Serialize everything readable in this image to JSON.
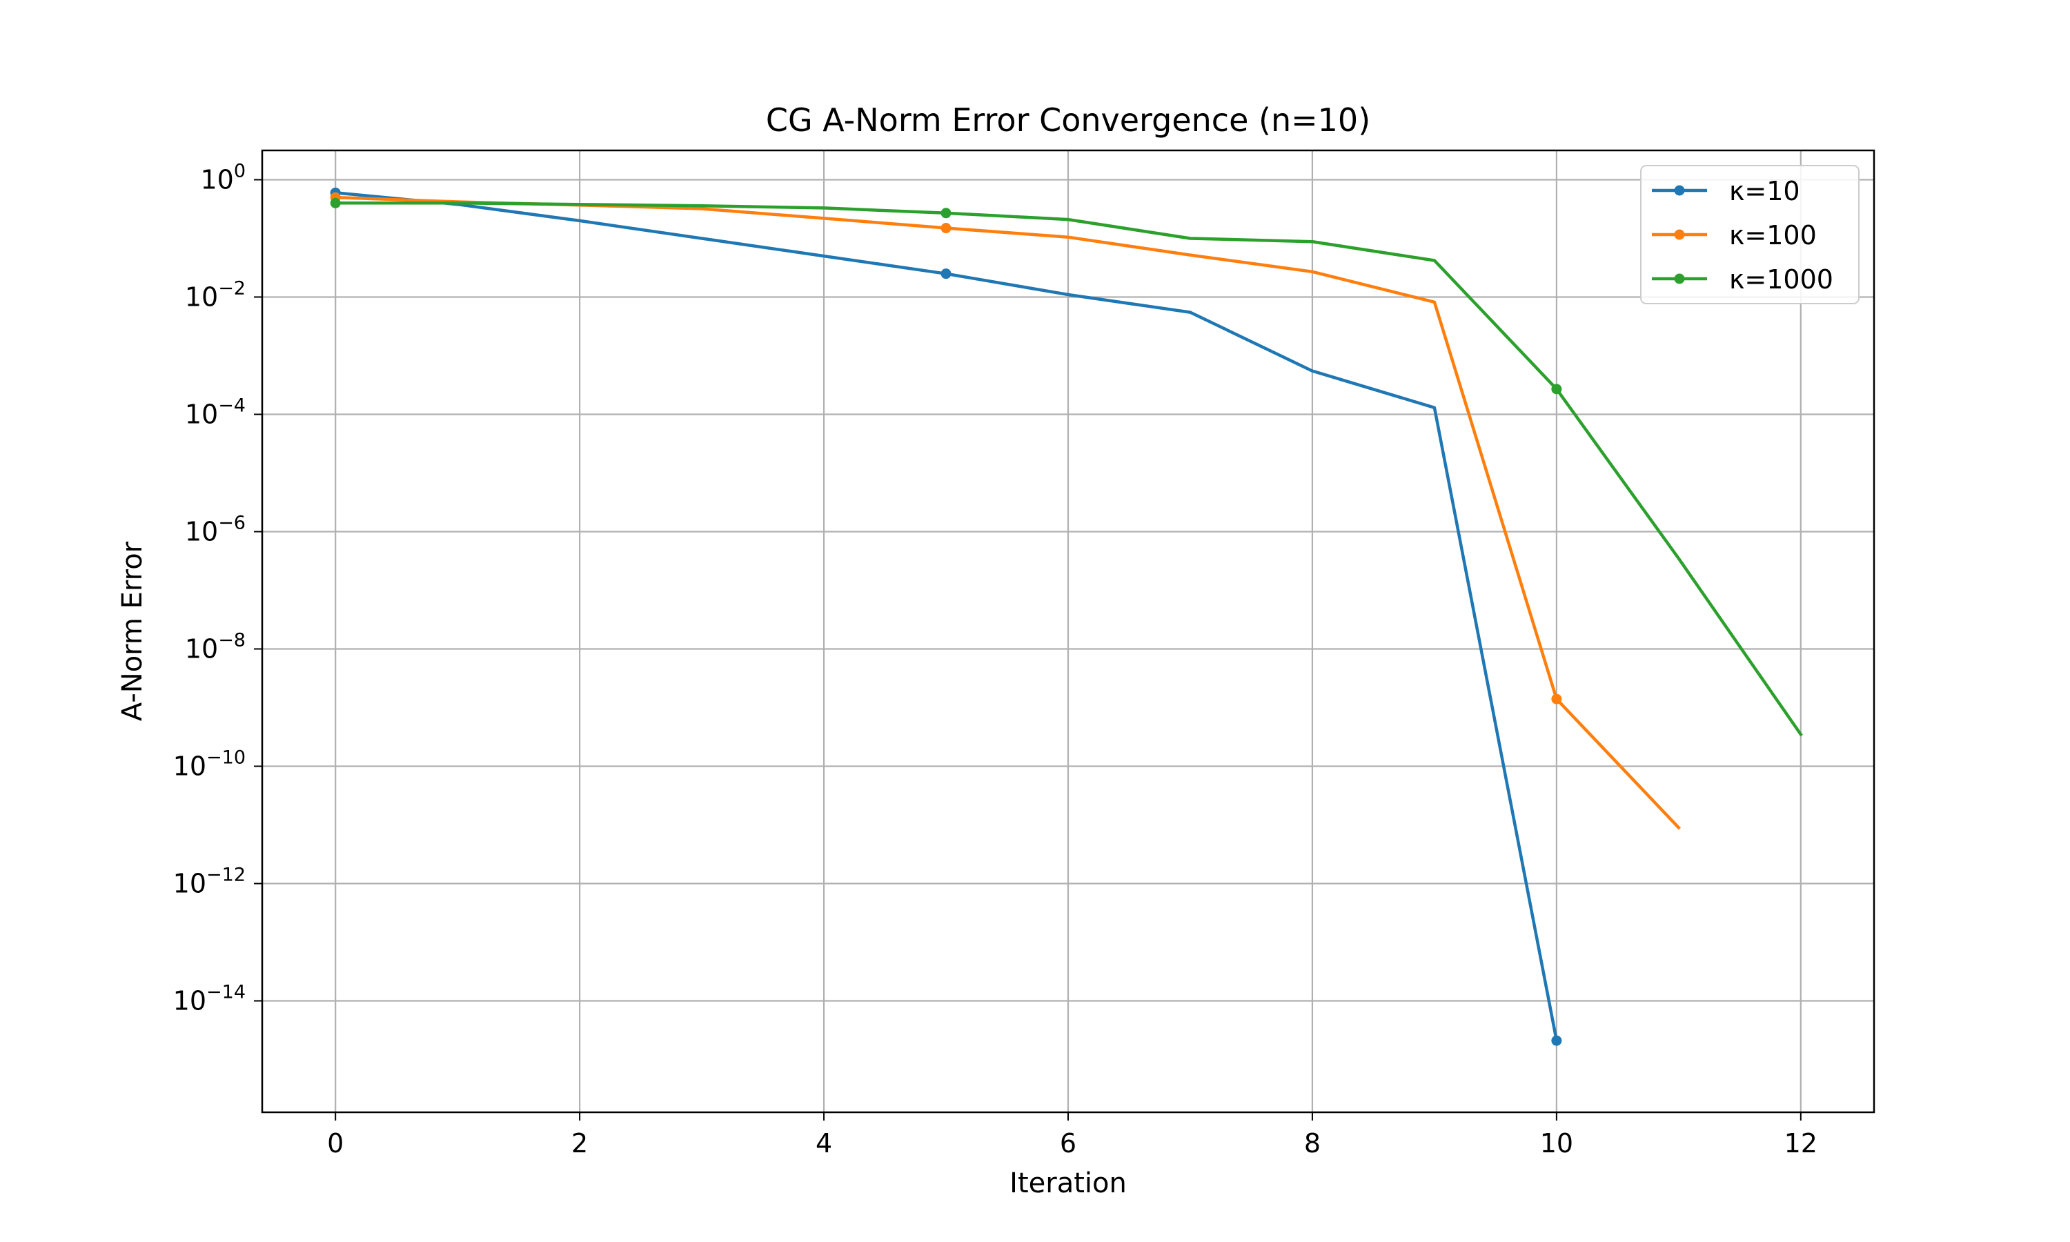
{
  "chart_data": {
    "type": "line",
    "title": "CG A-Norm Error Convergence (n=10)",
    "xlabel": "Iteration",
    "ylabel": "A-Norm Error",
    "xlim": [
      -0.6,
      12.6
    ],
    "ylim": [
      1.26e-16,
      3.16
    ],
    "y_scale": "log",
    "grid": true,
    "legend_position": "top-right",
    "x_ticks": [
      0,
      2,
      4,
      6,
      8,
      10,
      12
    ],
    "y_ticks": [
      {
        "value": 1,
        "base": "10",
        "exp": "0"
      },
      {
        "value": 0.01,
        "base": "10",
        "exp": "−2"
      },
      {
        "value": 0.0001,
        "base": "10",
        "exp": "−4"
      },
      {
        "value": 1e-06,
        "base": "10",
        "exp": "−6"
      },
      {
        "value": 1e-08,
        "base": "10",
        "exp": "−8"
      },
      {
        "value": 1e-10,
        "base": "10",
        "exp": "−10"
      },
      {
        "value": 1e-12,
        "base": "10",
        "exp": "−12"
      },
      {
        "value": 1e-14,
        "base": "10",
        "exp": "−14"
      }
    ],
    "series": [
      {
        "name": "κ=10",
        "color": "#1f77b4",
        "x": [
          0,
          1,
          2,
          3,
          4,
          5,
          6,
          7,
          8,
          9,
          10
        ],
        "y": [
          0.6,
          0.38,
          0.2,
          0.1,
          0.05,
          0.025,
          0.011,
          0.0055,
          0.00055,
          0.00013,
          2.1e-15
        ],
        "marker_x": [
          0,
          5,
          10
        ]
      },
      {
        "name": "κ=100",
        "color": "#ff7f0e",
        "x": [
          0,
          1,
          2,
          3,
          4,
          5,
          6,
          7,
          8,
          9,
          10,
          11
        ],
        "y": [
          0.5,
          0.42,
          0.37,
          0.32,
          0.22,
          0.15,
          0.105,
          0.052,
          0.027,
          0.0082,
          1.4e-09,
          9e-12
        ],
        "marker_x": [
          0,
          5,
          10
        ]
      },
      {
        "name": "κ=1000",
        "color": "#2ca02c",
        "x": [
          0,
          1,
          2,
          3,
          4,
          5,
          6,
          7,
          8,
          9,
          10,
          11,
          12
        ],
        "y": [
          0.4,
          0.4,
          0.38,
          0.36,
          0.33,
          0.27,
          0.21,
          0.1,
          0.088,
          0.042,
          0.00027,
          3.5e-07,
          3.5e-10
        ],
        "marker_x": [
          0,
          5,
          10
        ]
      }
    ]
  }
}
